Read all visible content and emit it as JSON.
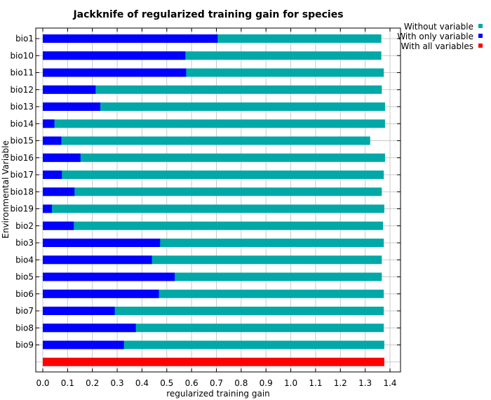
{
  "chart_data": {
    "type": "bar",
    "orientation": "horizontal",
    "title": "Jackknife of regularized training gain for species",
    "xlabel": "regularized training gain",
    "ylabel": "Environmental Variable",
    "xlim": [
      0.0,
      1.4
    ],
    "xticks": [
      "0.0",
      "0.1",
      "0.2",
      "0.3",
      "0.4",
      "0.5",
      "0.6",
      "0.7",
      "0.8",
      "0.9",
      "1.0",
      "1.1",
      "1.2",
      "1.3",
      "1.4"
    ],
    "grid": true,
    "legend_position": "top-right-outside",
    "categories": [
      "bio1",
      "bio10",
      "bio11",
      "bio12",
      "bio13",
      "bio14",
      "bio15",
      "bio16",
      "bio17",
      "bio18",
      "bio19",
      "bio2",
      "bio3",
      "bio4",
      "bio5",
      "bio6",
      "bio7",
      "bio8",
      "bio9"
    ],
    "series": [
      {
        "name": "Without variable",
        "color": "#00a8a8",
        "values": [
          1.365,
          1.365,
          1.375,
          1.367,
          1.38,
          1.38,
          1.32,
          1.38,
          1.375,
          1.367,
          1.377,
          1.372,
          1.375,
          1.367,
          1.367,
          1.375,
          1.375,
          1.375,
          1.377
        ]
      },
      {
        "name": "With only variable",
        "color": "#0000ff",
        "values": [
          0.705,
          0.575,
          0.578,
          0.213,
          0.232,
          0.047,
          0.075,
          0.152,
          0.077,
          0.128,
          0.037,
          0.125,
          0.473,
          0.44,
          0.532,
          0.468,
          0.29,
          0.375,
          0.327
        ]
      },
      {
        "name": "With all variables",
        "color": "#ff0000",
        "value": 1.377
      }
    ]
  }
}
